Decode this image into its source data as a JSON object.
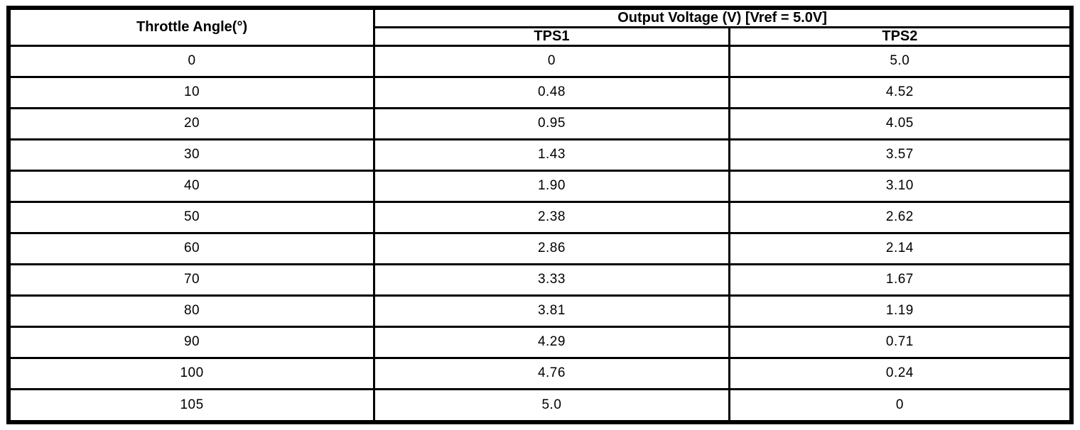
{
  "colors": {
    "border": "#000000",
    "background": "#ffffff",
    "text": "#000000"
  },
  "table": {
    "header": {
      "angle_label": "Throttle Angle(°)",
      "voltage_group_label": "Output Voltage (V) [Vref = 5.0V]",
      "tps1_label": "TPS1",
      "tps2_label": "TPS2"
    },
    "rows": [
      {
        "angle": "0",
        "tps1": "0",
        "tps2": "5.0"
      },
      {
        "angle": "10",
        "tps1": "0.48",
        "tps2": "4.52"
      },
      {
        "angle": "20",
        "tps1": "0.95",
        "tps2": "4.05"
      },
      {
        "angle": "30",
        "tps1": "1.43",
        "tps2": "3.57"
      },
      {
        "angle": "40",
        "tps1": "1.90",
        "tps2": "3.10"
      },
      {
        "angle": "50",
        "tps1": "2.38",
        "tps2": "2.62"
      },
      {
        "angle": "60",
        "tps1": "2.86",
        "tps2": "2.14"
      },
      {
        "angle": "70",
        "tps1": "3.33",
        "tps2": "1.67"
      },
      {
        "angle": "80",
        "tps1": "3.81",
        "tps2": "1.19"
      },
      {
        "angle": "90",
        "tps1": "4.29",
        "tps2": "0.71"
      },
      {
        "angle": "100",
        "tps1": "4.76",
        "tps2": "0.24"
      },
      {
        "angle": "105",
        "tps1": "5.0",
        "tps2": "0"
      }
    ]
  }
}
